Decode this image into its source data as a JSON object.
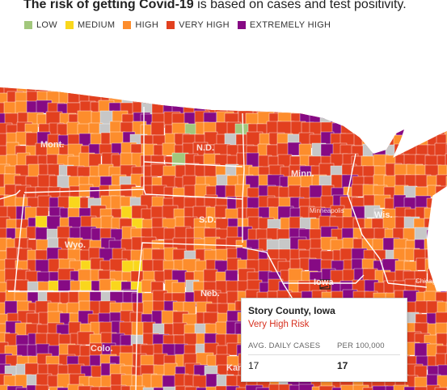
{
  "header": {
    "title_bold": "The risk of getting Covid-19",
    "title_rest": " is based on cases and test positivity."
  },
  "legend": [
    {
      "label": "LOW",
      "color": "#a2c77c"
    },
    {
      "label": "MEDIUM",
      "color": "#f9d71c"
    },
    {
      "label": "HIGH",
      "color": "#fd8d2c"
    },
    {
      "label": "VERY HIGH",
      "color": "#e2401f"
    },
    {
      "label": "EXTREMELY HIGH",
      "color": "#860a84"
    }
  ],
  "map": {
    "no_data_color": "#c7c7c7",
    "border_color": "#ffffff",
    "water_color": "#ffffff",
    "state_labels": [
      "Mont.",
      "N.D.",
      "Minn.",
      "S.D.",
      "Wyo.",
      "Wis.",
      "Neb.",
      "Iowa",
      "Colo.",
      "Kan."
    ],
    "city_labels": [
      "Minneapolis",
      "Chicago"
    ]
  },
  "tooltip": {
    "county": "Story County, Iowa",
    "risk": "Very High Risk",
    "col1_header": "AVG. DAILY CASES",
    "col2_header": "PER 100,000",
    "col1_value": "17",
    "col2_value": "17"
  }
}
